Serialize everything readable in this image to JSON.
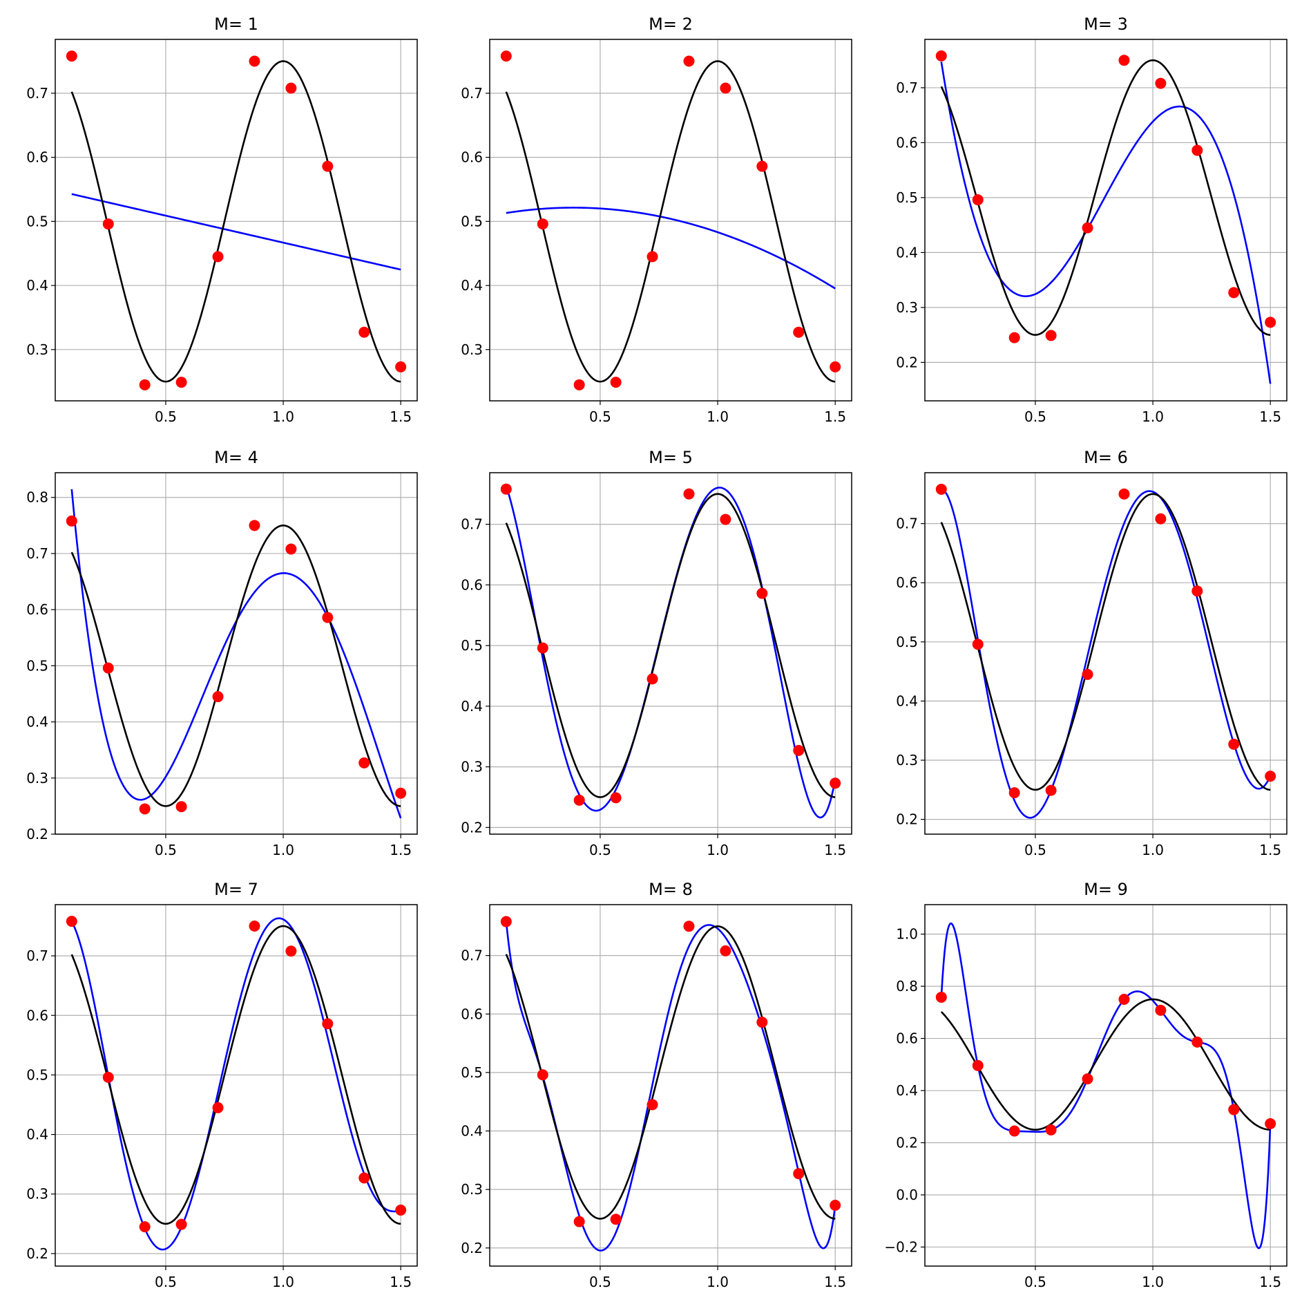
{
  "chart_data": {
    "type": "line",
    "description_series": [
      "data points (red)",
      "true curve (black)",
      "polynomial fit of degree M (blue)"
    ],
    "colors": {
      "points": "#ff0000",
      "truth": "#000000",
      "fit": "#0000ff",
      "grid": "#b0b0b0"
    },
    "points": {
      "x": [
        0.1,
        0.2556,
        0.4111,
        0.5667,
        0.7222,
        0.8778,
        1.0333,
        1.1889,
        1.3444,
        1.5
      ],
      "y": [
        0.758,
        0.496,
        0.245,
        0.249,
        0.445,
        0.75,
        0.708,
        0.586,
        0.327,
        0.273
      ]
    },
    "truth": {
      "formula": "0.5 + 0.25*cos(2*pi*x)",
      "xrange": [
        0.1,
        1.5
      ]
    },
    "xlim": [
      0.03,
      1.57
    ],
    "xticks": [
      0.5,
      1.0,
      1.5
    ],
    "xtick_labels": [
      "0.5",
      "1.0",
      "1.5"
    ],
    "panels": [
      {
        "title": "M= 1",
        "degree": 1,
        "ylim": [
          0.22,
          0.784
        ],
        "yticks": [
          0.3,
          0.4,
          0.5,
          0.6,
          0.7
        ],
        "ytick_labels": [
          "0.3",
          "0.4",
          "0.5",
          "0.6",
          "0.7"
        ]
      },
      {
        "title": "M= 2",
        "degree": 2,
        "ylim": [
          0.22,
          0.784
        ],
        "yticks": [
          0.3,
          0.4,
          0.5,
          0.6,
          0.7
        ],
        "ytick_labels": [
          "0.3",
          "0.4",
          "0.5",
          "0.6",
          "0.7"
        ]
      },
      {
        "title": "M= 3",
        "degree": 3,
        "ylim": [
          0.13,
          0.788
        ],
        "yticks": [
          0.2,
          0.3,
          0.4,
          0.5,
          0.6,
          0.7
        ],
        "ytick_labels": [
          "0.2",
          "0.3",
          "0.4",
          "0.5",
          "0.6",
          "0.7"
        ]
      },
      {
        "title": "M= 4",
        "degree": 4,
        "ylim": [
          0.2,
          0.844
        ],
        "yticks": [
          0.2,
          0.3,
          0.4,
          0.5,
          0.6,
          0.7,
          0.8
        ],
        "ytick_labels": [
          "0.2",
          "0.3",
          "0.4",
          "0.5",
          "0.6",
          "0.7",
          "0.8"
        ]
      },
      {
        "title": "M= 5",
        "degree": 5,
        "ylim": [
          0.189,
          0.785
        ],
        "yticks": [
          0.2,
          0.3,
          0.4,
          0.5,
          0.6,
          0.7
        ],
        "ytick_labels": [
          "0.2",
          "0.3",
          "0.4",
          "0.5",
          "0.6",
          "0.7"
        ]
      },
      {
        "title": "M= 6",
        "degree": 6,
        "ylim": [
          0.175,
          0.786
        ],
        "yticks": [
          0.2,
          0.3,
          0.4,
          0.5,
          0.6,
          0.7
        ],
        "ytick_labels": [
          "0.2",
          "0.3",
          "0.4",
          "0.5",
          "0.6",
          "0.7"
        ]
      },
      {
        "title": "M= 7",
        "degree": 7,
        "ylim": [
          0.179,
          0.786
        ],
        "yticks": [
          0.2,
          0.3,
          0.4,
          0.5,
          0.6,
          0.7
        ],
        "ytick_labels": [
          "0.2",
          "0.3",
          "0.4",
          "0.5",
          "0.6",
          "0.7"
        ]
      },
      {
        "title": "M= 8",
        "degree": 8,
        "ylim": [
          0.169,
          0.787
        ],
        "yticks": [
          0.2,
          0.3,
          0.4,
          0.5,
          0.6,
          0.7
        ],
        "ytick_labels": [
          "0.2",
          "0.3",
          "0.4",
          "0.5",
          "0.6",
          "0.7"
        ]
      },
      {
        "title": "M= 9",
        "degree": 9,
        "ylim": [
          -0.273,
          1.113
        ],
        "yticks": [
          -0.2,
          0.0,
          0.2,
          0.4,
          0.6,
          0.8,
          1.0
        ],
        "ytick_labels": [
          "−0.2",
          "0.0",
          "0.2",
          "0.4",
          "0.6",
          "0.8",
          "1.0"
        ]
      }
    ]
  }
}
